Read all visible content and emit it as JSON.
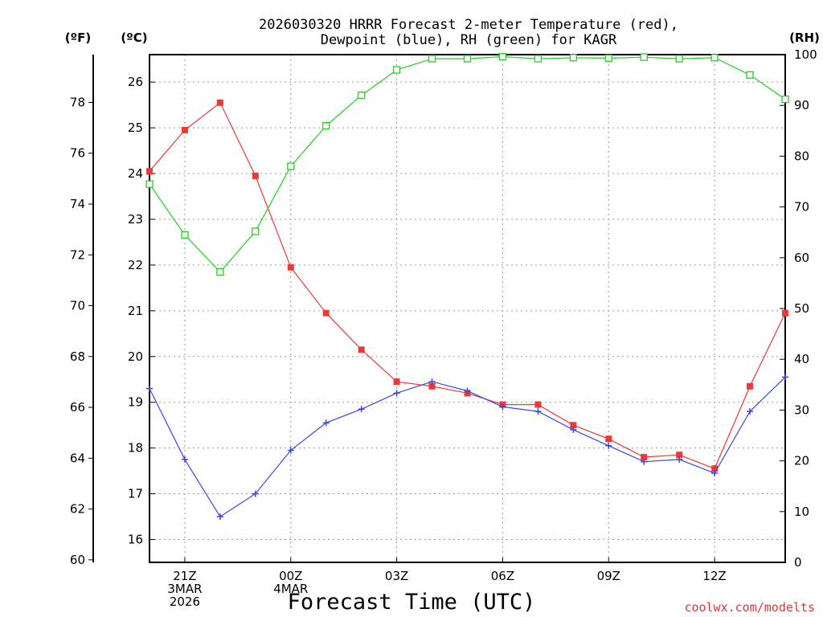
{
  "chart_data": {
    "type": "line",
    "title_line1": "2026030320 HRRR Forecast 2-meter Temperature (red),",
    "title_line2": "Dewpoint (blue), RH (green) for KAGR",
    "units": {
      "fahrenheit": "(ºF)",
      "celsius": "(ºC)",
      "rh": "(RH)"
    },
    "xlabel": "Forecast Time (UTC)",
    "credit": "coolwx.com/modelts",
    "x": [
      20,
      21,
      22,
      23,
      24,
      25,
      26,
      27,
      28,
      29,
      30,
      31,
      32,
      33,
      34,
      35,
      36,
      37,
      38
    ],
    "x_range": [
      20,
      38
    ],
    "x_ticks": [
      {
        "x": 21,
        "lines": [
          "21Z",
          "3MAR",
          "2026"
        ]
      },
      {
        "x": 24,
        "lines": [
          "00Z",
          "4MAR"
        ]
      },
      {
        "x": 27,
        "lines": [
          "03Z"
        ]
      },
      {
        "x": 30,
        "lines": [
          "06Z"
        ]
      },
      {
        "x": 33,
        "lines": [
          "09Z"
        ]
      },
      {
        "x": 36,
        "lines": [
          "12Z"
        ]
      }
    ],
    "celsius_axis": {
      "range": [
        15.5,
        26.6
      ],
      "ticks": [
        "16",
        "17",
        "18",
        "19",
        "20",
        "21",
        "22",
        "23",
        "24",
        "25",
        "26"
      ]
    },
    "fahrenheit_axis": {
      "range": [
        59.9,
        79.88
      ],
      "ticks": [
        "60",
        "62",
        "64",
        "66",
        "68",
        "70",
        "72",
        "74",
        "76",
        "78"
      ]
    },
    "rh_axis": {
      "range": [
        0,
        100
      ],
      "ticks": [
        "0",
        "10",
        "20",
        "30",
        "40",
        "50",
        "60",
        "70",
        "80",
        "90",
        "100"
      ]
    },
    "series": [
      {
        "name": "Temperature",
        "axis": "celsius",
        "color": "#f03838",
        "marker": "filled-square",
        "values": [
          24.05,
          24.95,
          25.55,
          23.95,
          21.95,
          20.95,
          20.15,
          19.45,
          19.35,
          19.2,
          18.95,
          18.95,
          18.5,
          18.2,
          17.8,
          17.85,
          17.55,
          19.35,
          20.95
        ]
      },
      {
        "name": "Dewpoint",
        "axis": "celsius",
        "color": "#3c46e6",
        "marker": "plus",
        "values": [
          19.3,
          17.75,
          16.5,
          17.0,
          17.95,
          18.55,
          18.85,
          19.2,
          19.45,
          19.25,
          18.9,
          18.8,
          18.4,
          18.05,
          17.7,
          17.75,
          17.45,
          18.8,
          19.55
        ]
      },
      {
        "name": "RH",
        "axis": "rh",
        "color": "#1ed21e",
        "marker": "open-square",
        "values": [
          74.5,
          64.5,
          57.2,
          65.2,
          78.0,
          86.0,
          92.0,
          97.0,
          99.2,
          99.2,
          99.6,
          99.2,
          99.4,
          99.3,
          99.5,
          99.2,
          99.4,
          96.0,
          91.2
        ]
      }
    ]
  }
}
